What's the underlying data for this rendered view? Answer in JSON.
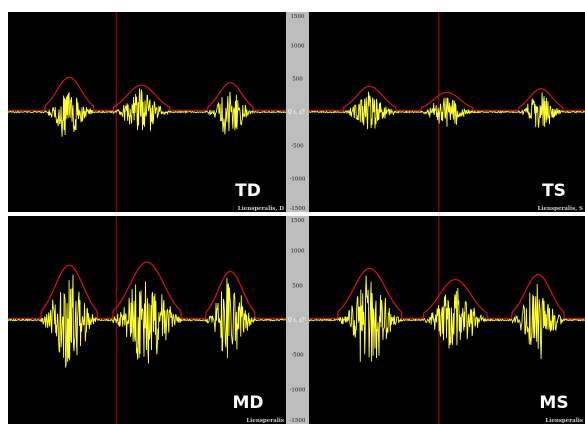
{
  "chart_data": [
    {
      "type": "line",
      "panel": "TD",
      "label": "TD",
      "muscle_label": "Liensperalis, D",
      "unit_label": "0 uu?",
      "yticks": [
        "1500",
        "1000",
        "500",
        "0",
        "-500",
        "-1000",
        "-1500"
      ],
      "ylim": [
        -1500,
        1500
      ],
      "xlim": [
        0,
        1
      ],
      "marker_x": 0.39,
      "colors": {
        "background": "#000000",
        "emg": "#ffff33",
        "envelope": "#dd1111",
        "marker": "#8b0000",
        "axis_strip": "#bdbdbd"
      },
      "bursts": [
        {
          "center": 0.22,
          "half_width": 0.065,
          "peak": 550
        },
        {
          "center": 0.48,
          "half_width": 0.075,
          "peak": 420
        },
        {
          "center": 0.8,
          "half_width": 0.06,
          "peak": 460
        }
      ]
    },
    {
      "type": "line",
      "panel": "TS",
      "label": "TS",
      "muscle_label": "Liensperalis, S",
      "yticks": [],
      "ylim": [
        -1500,
        1500
      ],
      "xlim": [
        0,
        1
      ],
      "marker_x": 0.47,
      "colors": {
        "background": "#000000",
        "emg": "#ffff33",
        "envelope": "#dd1111",
        "marker": "#8b0000"
      },
      "bursts": [
        {
          "center": 0.22,
          "half_width": 0.07,
          "peak": 400
        },
        {
          "center": 0.5,
          "half_width": 0.07,
          "peak": 300
        },
        {
          "center": 0.84,
          "half_width": 0.06,
          "peak": 360
        }
      ]
    },
    {
      "type": "line",
      "panel": "MD",
      "label": "MD",
      "muscle_label": "Liensperalis",
      "unit_label": "0 uu?",
      "yticks": [
        "1500",
        "1000",
        "500",
        "0",
        "-500",
        "-1000",
        "-1500"
      ],
      "ylim": [
        -1500,
        1500
      ],
      "xlim": [
        0,
        1
      ],
      "marker_x": 0.39,
      "colors": {
        "background": "#000000",
        "emg": "#ffff33",
        "envelope": "#dd1111",
        "marker": "#8b0000",
        "axis_strip": "#bdbdbd"
      },
      "bursts": [
        {
          "center": 0.22,
          "half_width": 0.075,
          "peak": 850
        },
        {
          "center": 0.5,
          "half_width": 0.09,
          "peak": 900
        },
        {
          "center": 0.8,
          "half_width": 0.065,
          "peak": 750
        }
      ]
    },
    {
      "type": "line",
      "panel": "MS",
      "label": "MS",
      "muscle_label": "Liensperalis",
      "yticks": [],
      "ylim": [
        -1500,
        1500
      ],
      "xlim": [
        0,
        1
      ],
      "marker_x": 0.47,
      "colors": {
        "background": "#000000",
        "emg": "#ffff33",
        "envelope": "#dd1111",
        "marker": "#8b0000"
      },
      "bursts": [
        {
          "center": 0.22,
          "half_width": 0.085,
          "peak": 800
        },
        {
          "center": 0.53,
          "half_width": 0.085,
          "peak": 620
        },
        {
          "center": 0.83,
          "half_width": 0.07,
          "peak": 700
        }
      ]
    }
  ]
}
